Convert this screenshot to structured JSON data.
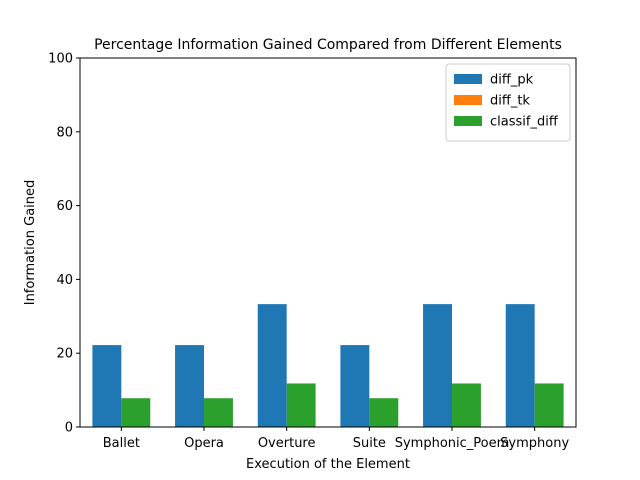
{
  "chart_data": {
    "type": "bar",
    "title": "Percentage Information Gained Compared from Different Elements",
    "xlabel": "Execution of the Element",
    "ylabel": "Information Gained",
    "ylim": [
      0,
      100
    ],
    "yticks": [
      0,
      20,
      40,
      60,
      80,
      100
    ],
    "categories": [
      "Ballet",
      "Opera",
      "Overture",
      "Suite",
      "Symphonic_Poem",
      "Symphony"
    ],
    "series": [
      {
        "name": "diff_pk",
        "color": "#1f77b4",
        "values": [
          22.2,
          22.2,
          33.3,
          22.2,
          33.3,
          33.3
        ]
      },
      {
        "name": "diff_tk",
        "color": "#ff7f0e",
        "values": [
          0,
          0,
          0,
          0,
          0,
          0
        ]
      },
      {
        "name": "classif_diff",
        "color": "#2ca02c",
        "values": [
          7.8,
          7.8,
          11.8,
          7.8,
          11.8,
          11.8
        ]
      }
    ],
    "legend": "top-right",
    "grid": false
  }
}
